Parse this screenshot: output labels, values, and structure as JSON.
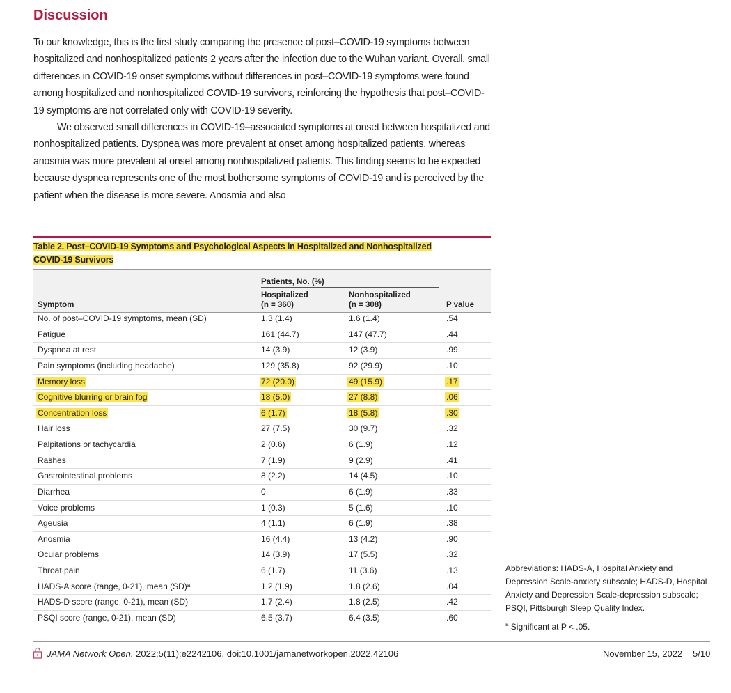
{
  "section": {
    "heading": "Discussion",
    "paragraphs": [
      "To our knowledge, this is the first study comparing the presence of post–COVID-19 symptoms between hospitalized and nonhospitalized patients 2 years after the infection due to the Wuhan variant. Overall, small differences in COVID-19 onset symptoms without differences in post–COVID-19 symptoms were found among hospitalized and nonhospitalized COVID-19 survivors, reinforcing the hypothesis that post–COVID-19 symptoms are not correlated only with COVID-19 severity.",
      "We observed small differences in COVID-19–associated symptoms at onset between hospitalized and nonhospitalized patients. Dyspnea was more prevalent at onset among hospitalized patients, whereas anosmia was more prevalent at onset among nonhospitalized patients. This finding seems to be expected because dyspnea represents one of the most bothersome symptoms of COVID-19 and is perceived by the patient when the disease is more severe. Anosmia and also"
    ]
  },
  "table": {
    "title": "Table 2. Post–COVID-19 Symptoms and Psychological Aspects in Hospitalized and Nonhospitalized COVID-19 Survivors",
    "header": {
      "symptom": "Symptom",
      "group": "Patients, No. (%)",
      "hospitalized": "Hospitalized",
      "hospitalized_n": "(n = 360)",
      "nonhospitalized": "Nonhospitalized",
      "nonhospitalized_n": "(n = 308)",
      "p": "P value"
    },
    "rows": [
      [
        "No. of post–COVID-19 symptoms, mean (SD)",
        "1.3 (1.4)",
        "1.6 (1.4)",
        ".54"
      ],
      [
        "Fatigue",
        "161 (44.7)",
        "147 (47.7)",
        ".44"
      ],
      [
        "Dyspnea at rest",
        "14 (3.9)",
        "12 (3.9)",
        ".99"
      ],
      [
        "Pain symptoms (including headache)",
        "129 (35.8)",
        "92 (29.9)",
        ".10"
      ],
      [
        "Memory loss",
        "72 (20.0)",
        "49 (15.9)",
        ".17"
      ],
      [
        "Cognitive blurring or brain fog",
        "18 (5.0)",
        "27 (8.8)",
        ".06"
      ],
      [
        "Concentration loss",
        "6 (1.7)",
        "18 (5.8)",
        ".30"
      ],
      [
        "Hair loss",
        "27 (7.5)",
        "30 (9.7)",
        ".32"
      ],
      [
        "Palpitations or tachycardia",
        "2 (0.6)",
        "6 (1.9)",
        ".12"
      ],
      [
        "Rashes",
        "7 (1.9)",
        "9 (2.9)",
        ".41"
      ],
      [
        "Gastrointestinal problems",
        "8 (2.2)",
        "14 (4.5)",
        ".10"
      ],
      [
        "Diarrhea",
        "0",
        "6 (1.9)",
        ".33"
      ],
      [
        "Voice problems",
        "1 (0.3)",
        "5 (1.6)",
        ".10"
      ],
      [
        "Ageusia",
        "4 (1.1)",
        "6 (1.9)",
        ".38"
      ],
      [
        "Anosmia",
        "16 (4.4)",
        "13 (4.2)",
        ".90"
      ],
      [
        "Ocular problems",
        "14 (3.9)",
        "17 (5.5)",
        ".32"
      ],
      [
        "Throat pain",
        "6 (1.7)",
        "11 (3.6)",
        ".13"
      ],
      [
        "HADS-A score (range, 0-21), mean (SD)ᵃ",
        "1.2 (1.9)",
        "1.8 (2.6)",
        ".04"
      ],
      [
        "HADS-D score (range, 0-21), mean (SD)",
        "1.7 (2.4)",
        "1.8 (2.5)",
        ".42"
      ],
      [
        "PSQI score (range, 0-21), mean (SD)",
        "6.5 (3.7)",
        "6.4 (3.5)",
        ".60"
      ]
    ],
    "highlighted_rows": [
      4,
      5,
      6
    ],
    "abbreviations": "Abbreviations: HADS-A, Hospital Anxiety and Depression Scale-anxiety subscale; HADS-D, Hospital Anxiety and Depression Scale-depression subscale; PSQI, Pittsburgh Sleep Quality Index.",
    "footnote_mark": "a",
    "footnote": "Significant at P < .05."
  },
  "footer": {
    "journal": "JAMA Network Open.",
    "citation": "2022;5(11):e2242106. doi:10.1001/jamanetworkopen.2022.42106",
    "date": "November 15, 2022",
    "page": "5/10"
  }
}
